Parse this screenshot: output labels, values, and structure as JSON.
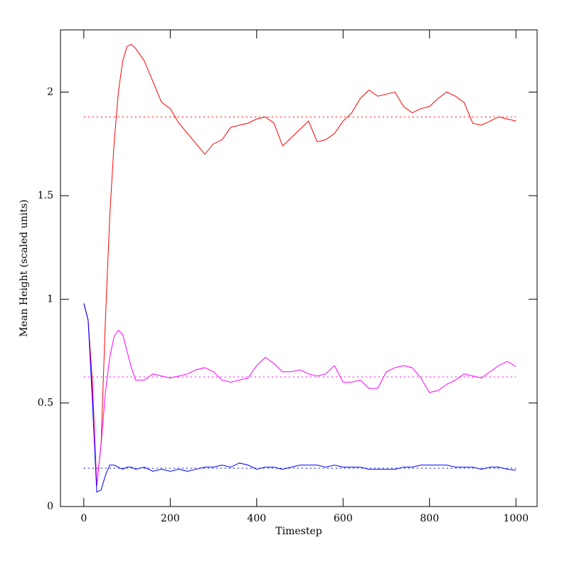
{
  "chart_data": {
    "type": "line",
    "xlabel": "Timestep",
    "ylabel": "Mean Height (scaled units)",
    "x": [
      0,
      10,
      20,
      30,
      40,
      50,
      60,
      70,
      80,
      90,
      100,
      110,
      120,
      140,
      160,
      180,
      200,
      220,
      240,
      260,
      280,
      300,
      320,
      340,
      360,
      380,
      400,
      420,
      440,
      460,
      480,
      500,
      520,
      540,
      560,
      580,
      600,
      620,
      640,
      660,
      680,
      700,
      720,
      740,
      760,
      780,
      800,
      820,
      840,
      860,
      880,
      900,
      920,
      940,
      960,
      980,
      1000
    ],
    "series": [
      {
        "color": "#ff0000",
        "values": [
          0.98,
          0.9,
          0.6,
          0.1,
          0.3,
          0.9,
          1.4,
          1.75,
          2.0,
          2.15,
          2.22,
          2.23,
          2.21,
          2.15,
          2.05,
          1.95,
          1.92,
          1.85,
          1.8,
          1.75,
          1.7,
          1.75,
          1.77,
          1.83,
          1.84,
          1.85,
          1.87,
          1.88,
          1.85,
          1.74,
          1.78,
          1.82,
          1.86,
          1.76,
          1.77,
          1.8,
          1.86,
          1.9,
          1.97,
          2.01,
          1.98,
          1.99,
          2.0,
          1.93,
          1.9,
          1.92,
          1.93,
          1.97,
          2.0,
          1.98,
          1.95,
          1.85,
          1.84,
          1.86,
          1.88,
          1.87,
          1.86
        ]
      },
      {
        "color": "#ff00ff",
        "values": [
          0.98,
          0.9,
          0.55,
          0.1,
          0.3,
          0.55,
          0.72,
          0.82,
          0.85,
          0.83,
          0.75,
          0.67,
          0.61,
          0.61,
          0.64,
          0.63,
          0.62,
          0.63,
          0.64,
          0.66,
          0.67,
          0.65,
          0.61,
          0.6,
          0.61,
          0.62,
          0.68,
          0.72,
          0.69,
          0.65,
          0.65,
          0.66,
          0.64,
          0.63,
          0.64,
          0.68,
          0.6,
          0.6,
          0.61,
          0.57,
          0.57,
          0.65,
          0.67,
          0.68,
          0.67,
          0.62,
          0.55,
          0.56,
          0.59,
          0.61,
          0.64,
          0.63,
          0.62,
          0.65,
          0.68,
          0.7,
          0.675
        ]
      },
      {
        "color": "#0000ff",
        "values": [
          0.98,
          0.9,
          0.5,
          0.07,
          0.08,
          0.15,
          0.2,
          0.2,
          0.19,
          0.18,
          0.19,
          0.19,
          0.18,
          0.19,
          0.17,
          0.18,
          0.17,
          0.18,
          0.17,
          0.18,
          0.19,
          0.19,
          0.2,
          0.19,
          0.21,
          0.2,
          0.18,
          0.19,
          0.19,
          0.18,
          0.19,
          0.2,
          0.2,
          0.2,
          0.19,
          0.2,
          0.19,
          0.19,
          0.19,
          0.18,
          0.18,
          0.18,
          0.18,
          0.19,
          0.19,
          0.2,
          0.2,
          0.2,
          0.2,
          0.19,
          0.19,
          0.19,
          0.18,
          0.19,
          0.19,
          0.18,
          0.175
        ]
      }
    ],
    "hlines": [
      {
        "value": 1.88,
        "color": "#ff0000",
        "xrange": [
          0,
          1000
        ]
      },
      {
        "value": 0.625,
        "color": "#ff00ff",
        "xrange": [
          0,
          1000
        ]
      },
      {
        "value": 0.185,
        "color": "#0000ff",
        "xrange": [
          0,
          1000
        ]
      }
    ],
    "xlim": [
      -54,
      1049
    ],
    "ylim": [
      0,
      2.3
    ],
    "xticks": [
      0,
      200,
      400,
      600,
      800,
      1000
    ],
    "yticks": [
      0,
      0.5,
      1,
      1.5,
      2
    ]
  }
}
